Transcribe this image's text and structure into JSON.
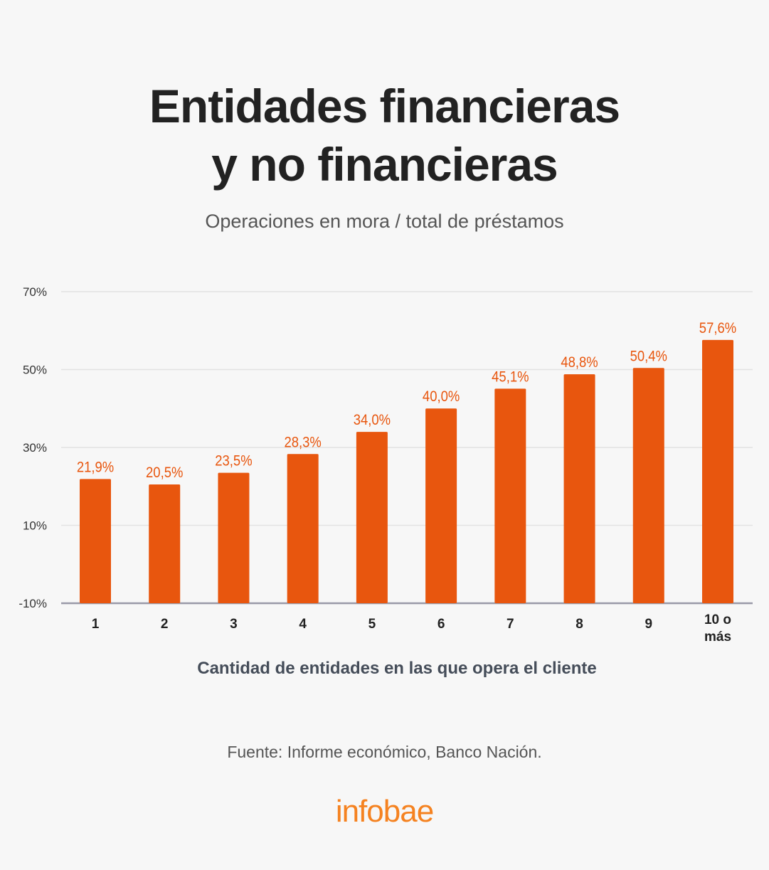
{
  "title_line1": "Entidades financieras",
  "title_line2": "y no financieras",
  "subtitle": "Operaciones en mora / total de préstamos",
  "source": "Fuente: Informe económico, Banco Nación.",
  "logo": "infobae",
  "colors": {
    "bar": "#e8560e",
    "label": "#e8560e",
    "logo": "#f58220",
    "grid": "#e2e2e2",
    "axis": "#9a9aa8"
  },
  "chart_data": {
    "type": "bar",
    "title": "Entidades financieras y no financieras",
    "subtitle": "Operaciones en mora / total de préstamos",
    "categories": [
      "1",
      "2",
      "3",
      "4",
      "5",
      "6",
      "7",
      "8",
      "9",
      "10 o más"
    ],
    "values": [
      21.9,
      20.5,
      23.5,
      28.3,
      34.0,
      40.0,
      45.1,
      48.8,
      50.4,
      57.6
    ],
    "value_labels": [
      "21,9%",
      "20,5%",
      "23,5%",
      "28,3%",
      "34,0%",
      "40,0%",
      "45,1%",
      "48,8%",
      "50,4%",
      "57,6%"
    ],
    "xlabel": "Cantidad de entidades en las que opera el cliente",
    "ylabel": "",
    "ylim": [
      -10,
      70
    ],
    "yticks": [
      70,
      50,
      30,
      10,
      -10
    ],
    "ytick_labels": [
      "70%",
      "50%",
      "30%",
      "10%",
      "-10%"
    ],
    "grid": true,
    "legend": "none"
  }
}
